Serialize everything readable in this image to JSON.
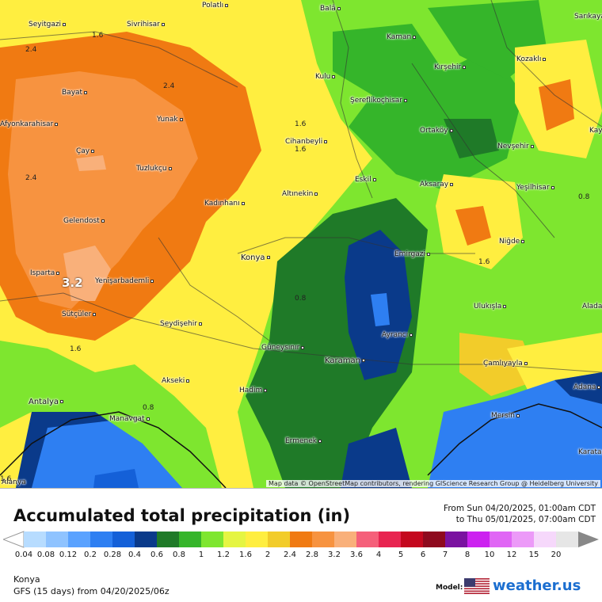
{
  "map": {
    "attribution": "Map data © OpenStreetMap contributors, rendering GIScience Research Group @ Heidelberg University",
    "cities": [
      {
        "name": "Polatlı",
        "key": "polatli"
      },
      {
        "name": "Balâ",
        "key": "bala"
      },
      {
        "name": "Sarıkaya",
        "key": "sarikaya"
      },
      {
        "name": "Seyitgazi",
        "key": "seyitgazi"
      },
      {
        "name": "Sivrihisar",
        "key": "sivrihisar"
      },
      {
        "name": "Kaman",
        "key": "kaman"
      },
      {
        "name": "Kozaklı",
        "key": "kozakli"
      },
      {
        "name": "Kırşehir",
        "key": "kirsehir"
      },
      {
        "name": "Kulu",
        "key": "kulu"
      },
      {
        "name": "Bayat",
        "key": "bayat"
      },
      {
        "name": "Şereflikoçhisar",
        "key": "sereflikochisar"
      },
      {
        "name": "Afyonkarahisar",
        "key": "afyonkarahisar"
      },
      {
        "name": "Yunak",
        "key": "yunak"
      },
      {
        "name": "Ortaköy",
        "key": "ortakoy"
      },
      {
        "name": "Kayseri",
        "key": "kayseri"
      },
      {
        "name": "Nevşehir",
        "key": "nevsehir"
      },
      {
        "name": "Cihanbeyli",
        "key": "cihanbeyli"
      },
      {
        "name": "Çay",
        "key": "cay"
      },
      {
        "name": "Tuzlukçu",
        "key": "tuzlukcu"
      },
      {
        "name": "Eskil",
        "key": "eskil"
      },
      {
        "name": "Aksaray",
        "key": "aksaray"
      },
      {
        "name": "Yeşilhisar",
        "key": "yesilhisar"
      },
      {
        "name": "Altınekin",
        "key": "altinekin"
      },
      {
        "name": "Kadınhanı",
        "key": "kadinhani"
      },
      {
        "name": "Gelendost",
        "key": "gelendost"
      },
      {
        "name": "Niğde",
        "key": "nigde"
      },
      {
        "name": "Emirgazi",
        "key": "emirgazi"
      },
      {
        "name": "Konya",
        "key": "konya"
      },
      {
        "name": "Isparta",
        "key": "isparta"
      },
      {
        "name": "Yenişarbademli",
        "key": "yenisarbademli"
      },
      {
        "name": "Ulukışla",
        "key": "ulukisla"
      },
      {
        "name": "Aladağ",
        "key": "aladag"
      },
      {
        "name": "Sütçüler",
        "key": "sutculer"
      },
      {
        "name": "Seydişehir",
        "key": "seydisehir"
      },
      {
        "name": "Ayrancı",
        "key": "ayranci"
      },
      {
        "name": "Güneysınır",
        "key": "guneysinir"
      },
      {
        "name": "Karaman",
        "key": "karaman"
      },
      {
        "name": "Çamlıyayla",
        "key": "camliyayla"
      },
      {
        "name": "Akseki",
        "key": "akseki"
      },
      {
        "name": "Hadim",
        "key": "hadim"
      },
      {
        "name": "Adana",
        "key": "adana"
      },
      {
        "name": "Antalya",
        "key": "antalya"
      },
      {
        "name": "Manavgat",
        "key": "manavgat"
      },
      {
        "name": "Mersin",
        "key": "mersin"
      },
      {
        "name": "Ermenek",
        "key": "ermenek"
      },
      {
        "name": "Karataş",
        "key": "karatas"
      },
      {
        "name": "Alanya",
        "key": "alanya"
      }
    ],
    "contour_labels": [
      "1.6",
      "2.4",
      "2.4",
      "1.6",
      "1.6",
      "2.4",
      "3.2",
      "0.8",
      "1.6",
      "1.6",
      "1.6",
      "0.8",
      "0.8"
    ]
  },
  "panel": {
    "title": "Accumulated total precipitation (in)",
    "period_from": "From Sun 04/20/2025, 01:00am CDT",
    "period_to": "to Thu 05/01/2025, 07:00am CDT",
    "location": "Konya",
    "model_run": "GFS (15 days) from  04/20/2025/06z",
    "model_label": "Model:",
    "brand": "weather.us"
  },
  "legend": {
    "ticks": [
      "0.04",
      "0.08",
      "0.12",
      "0.2",
      "0.28",
      "0.4",
      "0.6",
      "0.8",
      "1",
      "1.2",
      "1.6",
      "2",
      "2.4",
      "2.8",
      "3.2",
      "3.6",
      "4",
      "5",
      "6",
      "7",
      "8",
      "10",
      "12",
      "15",
      "20"
    ],
    "colors": [
      "#b7dcff",
      "#8fc3ff",
      "#5aa2ff",
      "#2e7ff2",
      "#1460d8",
      "#0a3a8a",
      "#1f7a28",
      "#35b52a",
      "#7ee62f",
      "#e5f542",
      "#ffee40",
      "#f2cc2a",
      "#f07a12",
      "#f79340",
      "#f9b07a",
      "#f5607a",
      "#e82450",
      "#c4081e",
      "#8e0a1e",
      "#7a12a0",
      "#cc22f0",
      "#e066f5",
      "#ec9af8",
      "#f6d8fb",
      "#e6e6e6"
    ]
  },
  "colors": {
    "brand": "#1c6fd0"
  }
}
